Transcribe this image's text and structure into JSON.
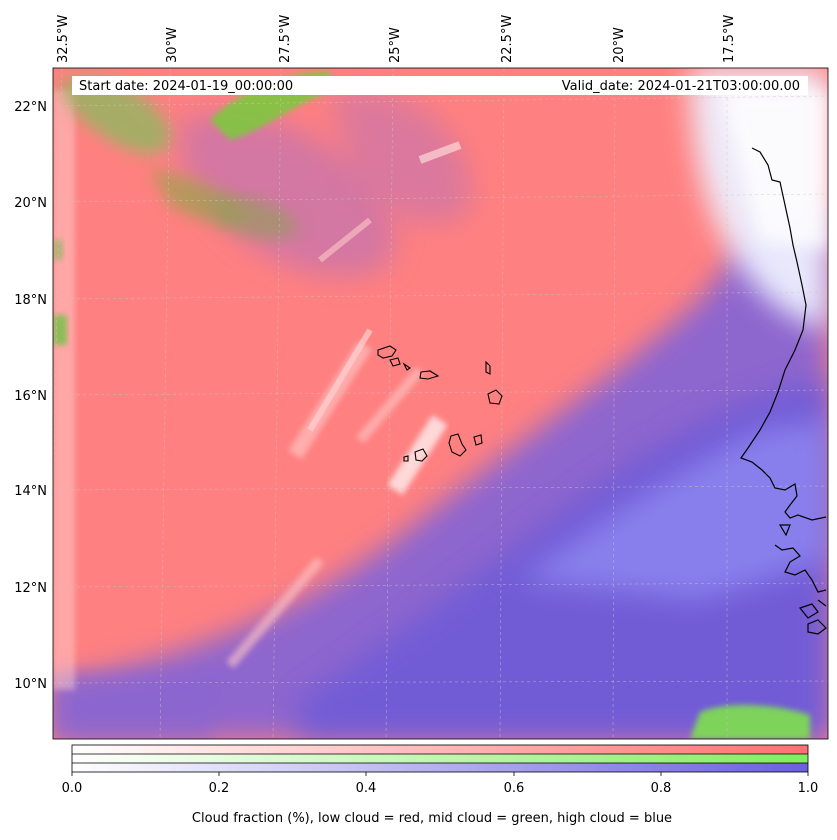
{
  "map": {
    "start_date": "Start date: 2024-01-19_00:00:00",
    "valid_date": "Valid_date: 2024-01-21T03:00:00.00",
    "lon_labels": [
      "32.5°W",
      "30°W",
      "27.5°W",
      "25°W",
      "22.5°W",
      "20°W",
      "17.5°W"
    ],
    "lat_labels": [
      "22°N",
      "20°N",
      "18°N",
      "16°N",
      "14°N",
      "12°N",
      "10°N"
    ],
    "colors": {
      "low_cloud": "#ff7f7f",
      "mid_cloud": "#7fdd55",
      "high_cloud": "#6f5fe0",
      "coastline": "#000000"
    }
  },
  "colorbar": {
    "ticks": [
      "0.0",
      "0.2",
      "0.4",
      "0.6",
      "0.8",
      "1.0"
    ],
    "label": "Cloud fraction (%), low cloud = red, mid cloud = green, high cloud = blue"
  }
}
